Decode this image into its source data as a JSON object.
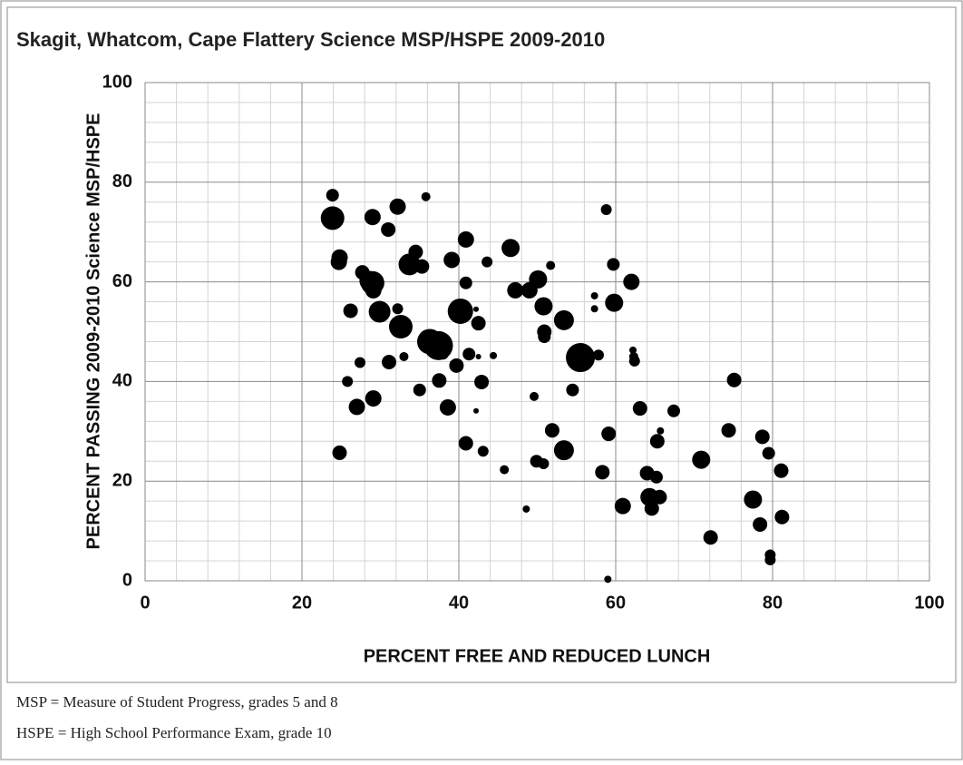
{
  "chart_data": {
    "type": "scatter",
    "title": "Skagit, Whatcom, Cape Flattery Science MSP/HSPE 2009-2010",
    "x_label": "PERCENT FREE AND REDUCED LUNCH",
    "y_label": "PERCENT PASSING 2009-2010 Science MSP/HSPE",
    "xlim": [
      0,
      100
    ],
    "ylim": [
      0,
      100
    ],
    "xticks": [
      0,
      20,
      40,
      60,
      80,
      100
    ],
    "yticks": [
      0,
      20,
      40,
      60,
      80,
      100
    ],
    "grid": true,
    "minor_grid_divisions": 4,
    "color": "#000000",
    "x": [
      45.8,
      46.6,
      47.2,
      48.6,
      49.0,
      49.6,
      49.9,
      50.1,
      50.8,
      50.9,
      50.9,
      50.8,
      51.7,
      51.9,
      53.4,
      53.4,
      54.5,
      55.5,
      57.3,
      57.3,
      57.8,
      58.3,
      58.8,
      59.1,
      59.0,
      59.7,
      59.8,
      60.9,
      62.0,
      62.2,
      62.3,
      62.4,
      63.1,
      64.0,
      64.3,
      64.6,
      65.2,
      65.3,
      65.6,
      65.7,
      67.4,
      70.9,
      72.1,
      74.4,
      75.1,
      77.5,
      78.4,
      78.7,
      79.5,
      79.7,
      79.7,
      81.1,
      81.2,
      23.9,
      23.9,
      24.8,
      24.7,
      24.8,
      25.8,
      26.2,
      27.0,
      27.4,
      27.7,
      28.6,
      29.0,
      29.1,
      29.0,
      29.1,
      29.9,
      31.0,
      31.1,
      32.2,
      32.2,
      32.6,
      33.0,
      33.7,
      34.5,
      35.0,
      35.3,
      35.8,
      36.3,
      37.4,
      37.5,
      38.0,
      38.6,
      39.1,
      39.7,
      40.2,
      40.9,
      40.9,
      40.9,
      41.3,
      42.2,
      42.2,
      42.5,
      42.5,
      42.9,
      43.1,
      43.6,
      44.4
    ],
    "y": [
      22.3,
      66.8,
      58.3,
      14.4,
      58.3,
      37.0,
      24.0,
      60.5,
      55.1,
      50.0,
      49.0,
      23.5,
      63.3,
      30.2,
      52.3,
      26.2,
      38.3,
      44.8,
      57.2,
      54.6,
      45.3,
      21.8,
      74.5,
      29.5,
      0.3,
      63.5,
      55.8,
      15.0,
      60.0,
      46.3,
      45.0,
      44.1,
      34.6,
      21.6,
      16.8,
      14.5,
      20.8,
      28.0,
      16.8,
      30.1,
      34.1,
      24.3,
      8.7,
      30.2,
      40.3,
      16.3,
      11.3,
      28.9,
      25.6,
      5.2,
      4.2,
      22.1,
      12.8,
      77.4,
      72.8,
      64.9,
      64.0,
      25.7,
      40.0,
      54.2,
      34.9,
      43.8,
      61.9,
      60.2,
      59.8,
      58.3,
      73.0,
      36.6,
      54.0,
      70.5,
      43.9,
      75.1,
      54.6,
      51.0,
      45.0,
      63.5,
      66.0,
      38.3,
      63.1,
      77.1,
      48.0,
      47.2,
      40.2,
      45.5,
      34.8,
      64.4,
      43.2,
      54.1,
      68.5,
      59.8,
      27.6,
      45.5,
      54.5,
      34.1,
      51.7,
      45.0,
      39.9,
      26.0,
      64.0,
      45.2
    ],
    "sizes": [
      5,
      10,
      9,
      4,
      9,
      5,
      7,
      10,
      10,
      8,
      7,
      6,
      5,
      8,
      11,
      11,
      7,
      16,
      4,
      4,
      6,
      8,
      6,
      8,
      4,
      7,
      10,
      9,
      9,
      4,
      5,
      6,
      8,
      8,
      10,
      8,
      7,
      8,
      8,
      4,
      7,
      10,
      8,
      8,
      8,
      10,
      8,
      8,
      7,
      6,
      6,
      8,
      8,
      7,
      13,
      9,
      9,
      8,
      6,
      8,
      9,
      6,
      8,
      11,
      13,
      9,
      9,
      9,
      12,
      8,
      8,
      9,
      6,
      13,
      5,
      12,
      8,
      7,
      8,
      5,
      14,
      16,
      8,
      6,
      9,
      9,
      8,
      14,
      9,
      7,
      8,
      7,
      3,
      3,
      8,
      3,
      8,
      6,
      6,
      4
    ]
  },
  "notes": [
    "MSP = Measure of Student Progress, grades 5 and 8",
    "HSPE = High School Performance Exam, grade 10"
  ]
}
